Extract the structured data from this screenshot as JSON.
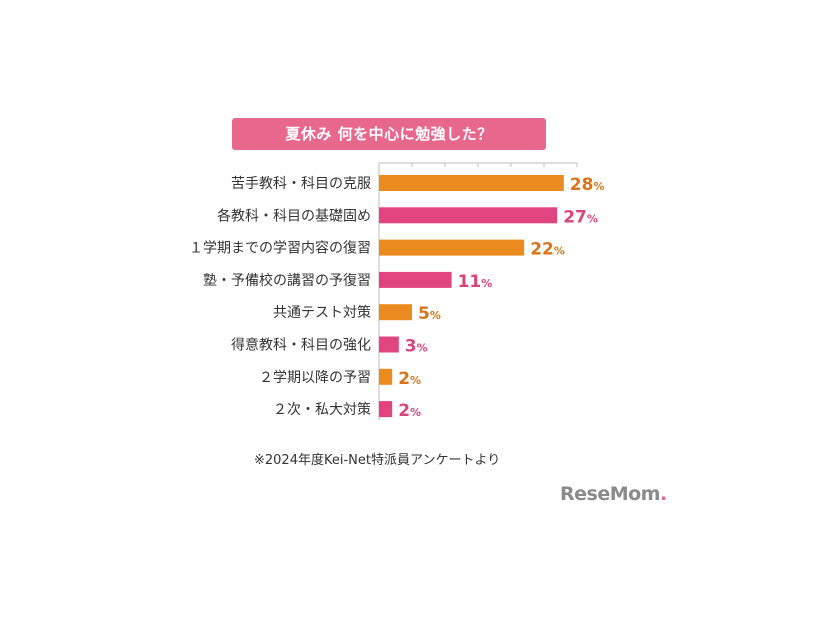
{
  "chart_data": {
    "type": "bar",
    "orientation": "horizontal",
    "title": "夏休み 何を中心に勉強した？",
    "categories": [
      "苦手教科・科目の克服",
      "各教科・科目の基礎固め",
      "１学期までの学習内容の復習",
      "塾・予備校の講習の予復習",
      "共通テスト対策",
      "得意教科・科目の強化",
      "２学期以降の予習",
      "２次・私大対策"
    ],
    "values": [
      28,
      27,
      22,
      11,
      5,
      3,
      2,
      2
    ],
    "value_unit": "%",
    "bar_colors": [
      "#eb8a1e",
      "#e0457f",
      "#eb8a1e",
      "#e0457f",
      "#eb8a1e",
      "#e0457f",
      "#eb8a1e",
      "#e0457f"
    ],
    "label_colors": [
      "#d8741a",
      "#d8457c",
      "#d8741a",
      "#d8457c",
      "#d8741a",
      "#d8457c",
      "#d8741a",
      "#d8457c"
    ],
    "xlim": [
      0,
      30
    ],
    "grid": false,
    "axis_color": "#bdbdbd",
    "title_background": "#e8678c"
  },
  "footer": {
    "note": "※2024年度Kei-Net特派員アンケートより"
  },
  "brand": {
    "name": "ReseMom",
    "dot": "."
  }
}
